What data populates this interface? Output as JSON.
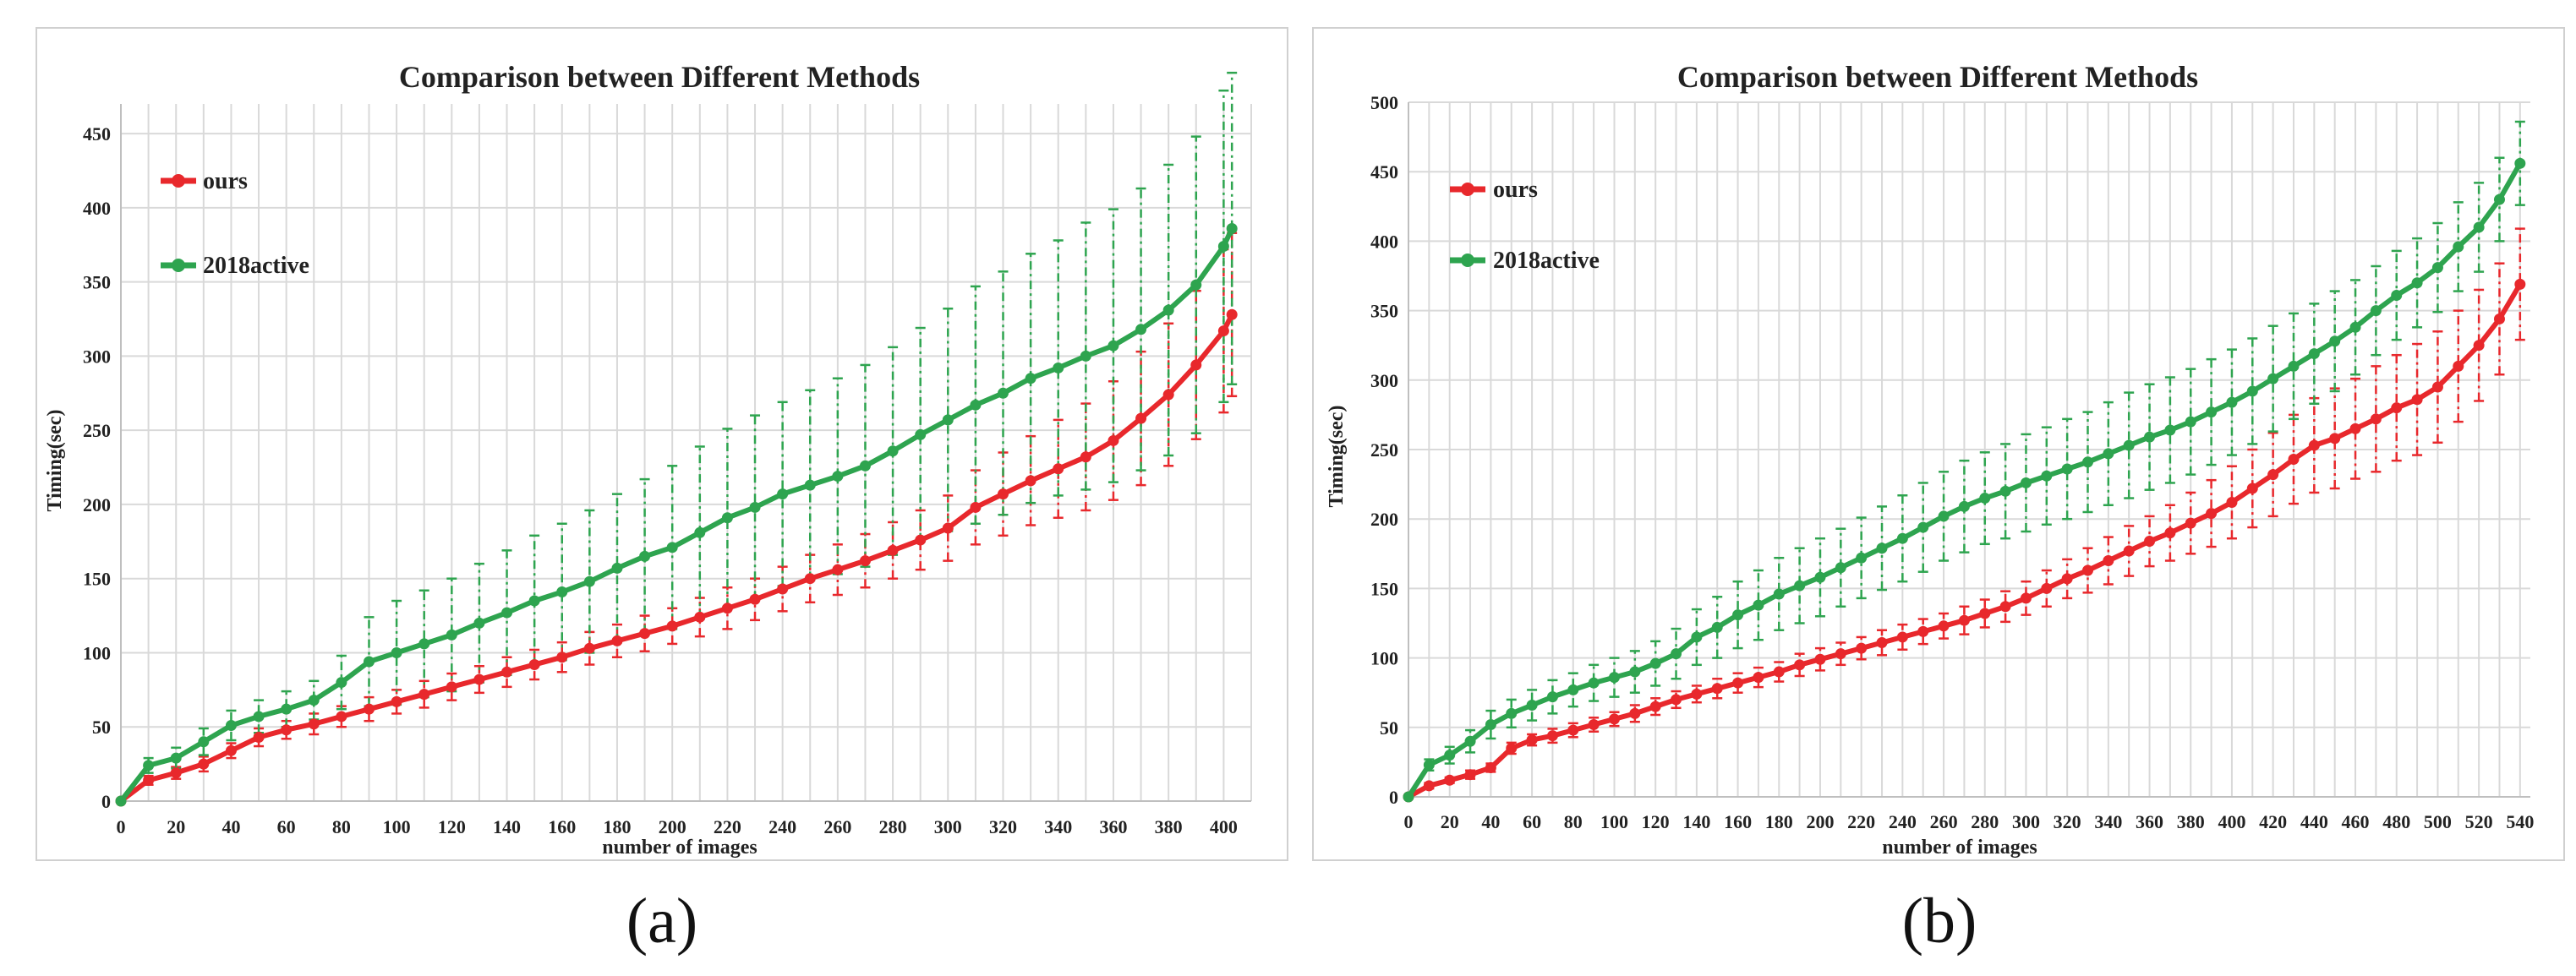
{
  "captions": [
    "(a)",
    "(b)"
  ],
  "colors": {
    "ours": "#e8282c",
    "active": "#2ea44f"
  },
  "chart_data": [
    {
      "type": "line",
      "title": "Comparison between Different Methods",
      "xlabel": "number of images",
      "ylabel": "Timing(sec)",
      "xlim": [
        0,
        410
      ],
      "ylim": [
        0,
        470
      ],
      "xticks": [
        0,
        20,
        40,
        60,
        80,
        100,
        120,
        140,
        160,
        180,
        200,
        220,
        240,
        260,
        280,
        300,
        320,
        340,
        360,
        380,
        400
      ],
      "yticks": [
        0,
        50,
        100,
        150,
        200,
        250,
        300,
        350,
        400,
        450
      ],
      "legend_position": "top-left",
      "grid": true,
      "x": [
        0,
        10,
        20,
        30,
        40,
        50,
        60,
        70,
        80,
        90,
        100,
        110,
        120,
        130,
        140,
        150,
        160,
        170,
        180,
        190,
        200,
        210,
        220,
        230,
        240,
        250,
        260,
        270,
        280,
        290,
        300,
        310,
        320,
        330,
        340,
        350,
        360,
        370,
        380,
        390,
        400,
        403
      ],
      "series": [
        {
          "name": "ours",
          "color": "#e8282c",
          "values": [
            0,
            14,
            19,
            25,
            34,
            43,
            48,
            52,
            57,
            62,
            67,
            72,
            77,
            82,
            87,
            92,
            97,
            103,
            108,
            113,
            118,
            124,
            130,
            136,
            143,
            150,
            156,
            162,
            169,
            176,
            184,
            198,
            207,
            216,
            224,
            232,
            243,
            258,
            274,
            294,
            317,
            328
          ],
          "errors": [
            0,
            3,
            4,
            5,
            5,
            6,
            6,
            7,
            7,
            8,
            8,
            9,
            9,
            9,
            10,
            10,
            10,
            11,
            11,
            12,
            12,
            13,
            14,
            14,
            15,
            16,
            17,
            18,
            19,
            20,
            22,
            25,
            28,
            30,
            33,
            36,
            40,
            45,
            48,
            50,
            55,
            55
          ]
        },
        {
          "name": "2018active",
          "color": "#2ea44f",
          "values": [
            0,
            24,
            29,
            40,
            51,
            57,
            62,
            68,
            80,
            94,
            100,
            106,
            112,
            120,
            127,
            135,
            141,
            148,
            157,
            165,
            171,
            181,
            191,
            198,
            207,
            213,
            219,
            226,
            236,
            247,
            257,
            267,
            275,
            285,
            292,
            300,
            307,
            318,
            331,
            348,
            374,
            386
          ],
          "errors": [
            0,
            5,
            7,
            9,
            10,
            11,
            12,
            13,
            18,
            30,
            35,
            36,
            38,
            40,
            42,
            44,
            46,
            48,
            50,
            52,
            55,
            58,
            60,
            62,
            62,
            64,
            66,
            68,
            70,
            72,
            75,
            80,
            82,
            84,
            86,
            90,
            92,
            95,
            98,
            100,
            105,
            105
          ]
        }
      ]
    },
    {
      "type": "line",
      "title": "Comparison between Different Methods",
      "xlabel": "number of images",
      "ylabel": "Timing(sec)",
      "xlim": [
        0,
        545
      ],
      "ylim": [
        0,
        500
      ],
      "xticks": [
        0,
        20,
        40,
        60,
        80,
        100,
        120,
        140,
        160,
        180,
        200,
        220,
        240,
        260,
        280,
        300,
        320,
        340,
        360,
        380,
        400,
        420,
        440,
        460,
        480,
        500,
        520,
        540
      ],
      "yticks": [
        0,
        50,
        100,
        150,
        200,
        250,
        300,
        350,
        400,
        450,
        500
      ],
      "legend_position": "top-left",
      "grid": true,
      "x": [
        0,
        10,
        20,
        30,
        40,
        50,
        60,
        70,
        80,
        90,
        100,
        110,
        120,
        130,
        140,
        150,
        160,
        170,
        180,
        190,
        200,
        210,
        220,
        230,
        240,
        250,
        260,
        270,
        280,
        290,
        300,
        310,
        320,
        330,
        340,
        350,
        360,
        370,
        380,
        390,
        400,
        410,
        420,
        430,
        440,
        450,
        460,
        470,
        480,
        490,
        500,
        510,
        520,
        530,
        540
      ],
      "series": [
        {
          "name": "ours",
          "color": "#e8282c",
          "values": [
            0,
            8,
            12,
            16,
            21,
            35,
            41,
            44,
            48,
            52,
            56,
            60,
            65,
            70,
            74,
            78,
            82,
            86,
            90,
            95,
            99,
            103,
            107,
            111,
            115,
            119,
            123,
            127,
            132,
            137,
            143,
            150,
            157,
            163,
            170,
            177,
            184,
            190,
            197,
            204,
            212,
            222,
            232,
            243,
            253,
            258,
            265,
            272,
            280,
            286,
            295,
            310,
            325,
            344,
            369
          ],
          "errors": [
            0,
            2,
            2,
            3,
            3,
            4,
            4,
            5,
            5,
            5,
            5,
            6,
            6,
            6,
            6,
            7,
            7,
            7,
            7,
            8,
            8,
            8,
            8,
            9,
            9,
            9,
            9,
            10,
            10,
            11,
            12,
            13,
            14,
            16,
            17,
            18,
            18,
            20,
            22,
            24,
            26,
            28,
            30,
            32,
            34,
            36,
            36,
            38,
            38,
            40,
            40,
            40,
            40,
            40,
            40
          ]
        },
        {
          "name": "2018active",
          "color": "#2ea44f",
          "values": [
            0,
            23,
            30,
            40,
            52,
            60,
            66,
            72,
            77,
            82,
            86,
            90,
            96,
            103,
            115,
            122,
            131,
            138,
            146,
            152,
            158,
            165,
            172,
            179,
            186,
            194,
            202,
            209,
            215,
            220,
            226,
            231,
            236,
            241,
            247,
            253,
            259,
            264,
            270,
            277,
            284,
            292,
            301,
            310,
            319,
            328,
            338,
            350,
            361,
            370,
            381,
            396,
            410,
            430,
            456
          ],
          "errors": [
            0,
            4,
            6,
            8,
            10,
            10,
            11,
            12,
            12,
            13,
            14,
            15,
            16,
            18,
            20,
            22,
            24,
            25,
            26,
            27,
            28,
            28,
            29,
            30,
            31,
            32,
            32,
            33,
            33,
            34,
            35,
            35,
            36,
            36,
            37,
            38,
            38,
            38,
            38,
            38,
            38,
            38,
            38,
            38,
            36,
            36,
            34,
            32,
            32,
            32,
            32,
            32,
            32,
            30,
            30
          ]
        }
      ]
    }
  ]
}
